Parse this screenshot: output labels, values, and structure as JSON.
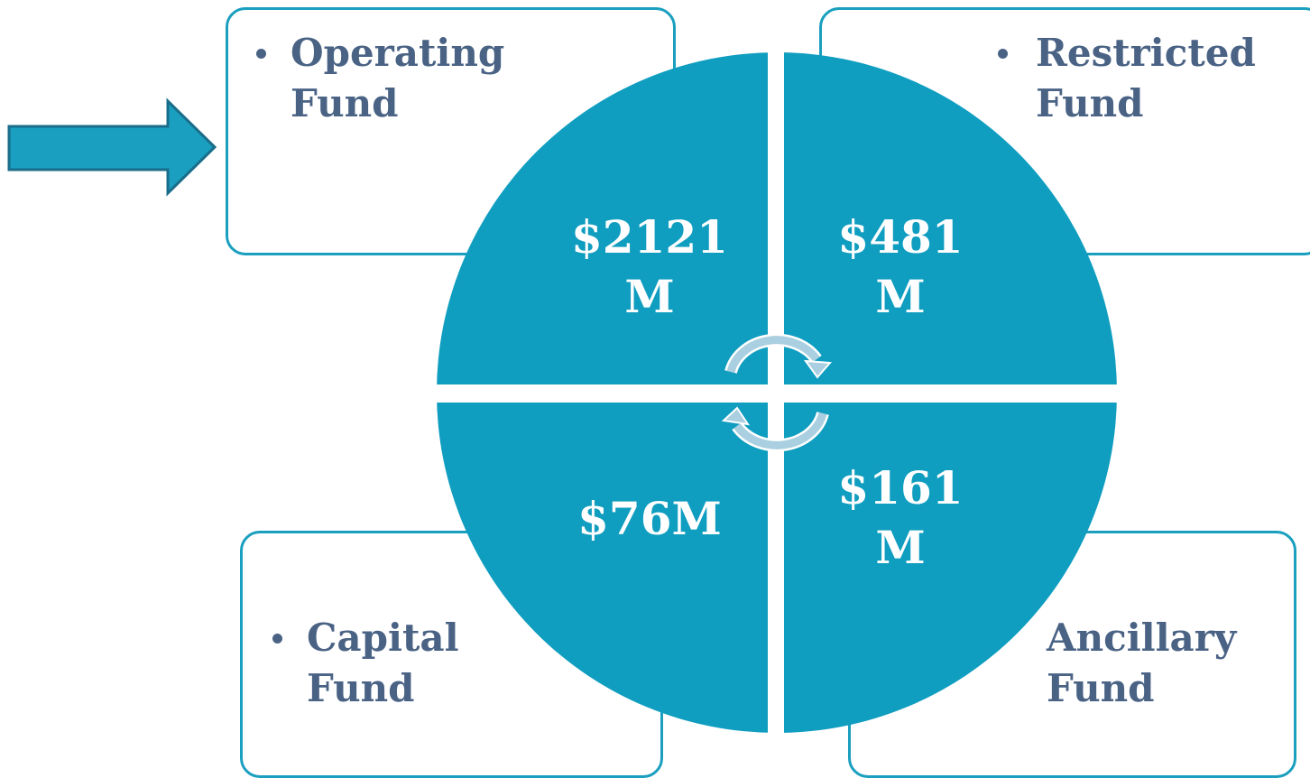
{
  "quadrants": [
    {
      "label": "Operating Fund",
      "amount": "$2121 M"
    },
    {
      "label": "Restricted Fund",
      "amount": "$481 M"
    },
    {
      "label": "Capital Fund",
      "amount": "$76M"
    },
    {
      "label": "Ancillary Fund",
      "amount": "$161 M"
    }
  ]
}
